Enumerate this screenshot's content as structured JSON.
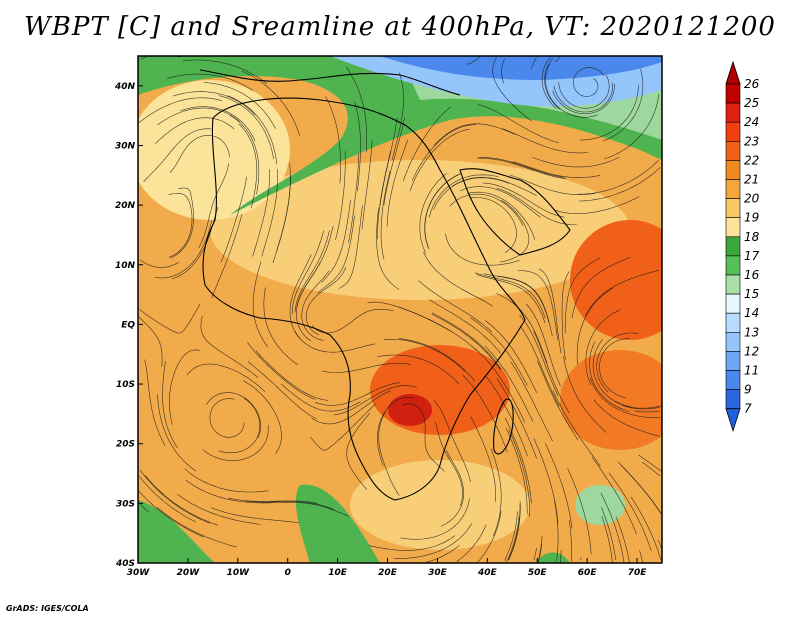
{
  "title": "WBPT [C] and Sreamline at 400hPa, VT: 2020121200",
  "credit": "GrADS: IGES/COLA",
  "map": {
    "lon_range": [
      -30,
      75
    ],
    "lat_range": [
      -40,
      45
    ],
    "lon_ticks": [
      {
        "value": -30,
        "label": "30W"
      },
      {
        "value": -20,
        "label": "20W"
      },
      {
        "value": -10,
        "label": "10W"
      },
      {
        "value": 0,
        "label": "0"
      },
      {
        "value": 10,
        "label": "10E"
      },
      {
        "value": 20,
        "label": "20E"
      },
      {
        "value": 30,
        "label": "30E"
      },
      {
        "value": 40,
        "label": "40E"
      },
      {
        "value": 50,
        "label": "50E"
      },
      {
        "value": 60,
        "label": "60E"
      },
      {
        "value": 70,
        "label": "70E"
      }
    ],
    "lat_ticks": [
      {
        "value": 40,
        "label": "40N"
      },
      {
        "value": 30,
        "label": "30N"
      },
      {
        "value": 20,
        "label": "20N"
      },
      {
        "value": 10,
        "label": "10N"
      },
      {
        "value": 0,
        "label": "EQ"
      },
      {
        "value": -10,
        "label": "10S"
      },
      {
        "value": -20,
        "label": "20S"
      },
      {
        "value": -30,
        "label": "30S"
      },
      {
        "value": -40,
        "label": "40S"
      }
    ]
  },
  "colorbar": {
    "levels": [
      "26",
      "25",
      "24",
      "23",
      "22",
      "21",
      "20",
      "19",
      "18",
      "17",
      "16",
      "15",
      "14",
      "13",
      "12",
      "11",
      "9",
      "7"
    ],
    "colors": [
      "#c00000",
      "#e02010",
      "#f04010",
      "#f06018",
      "#f08a20",
      "#f4a73a",
      "#f9c766",
      "#fbe49a",
      "#3aa83a",
      "#58c058",
      "#a8e0a8",
      "#e8f8ff",
      "#b8dcff",
      "#94c6fb",
      "#6ea8f4",
      "#4a88ec",
      "#2a66de"
    ],
    "top_arrow_color": "#b00000",
    "bottom_arrow_color": "#2060e0"
  },
  "colors": {
    "warm_orange": "#f0a040",
    "hot_red": "#e04010",
    "pale_yellow": "#fbe49a",
    "green": "#50b850",
    "light_blue": "#b8dcff",
    "blue": "#4a88ec"
  }
}
